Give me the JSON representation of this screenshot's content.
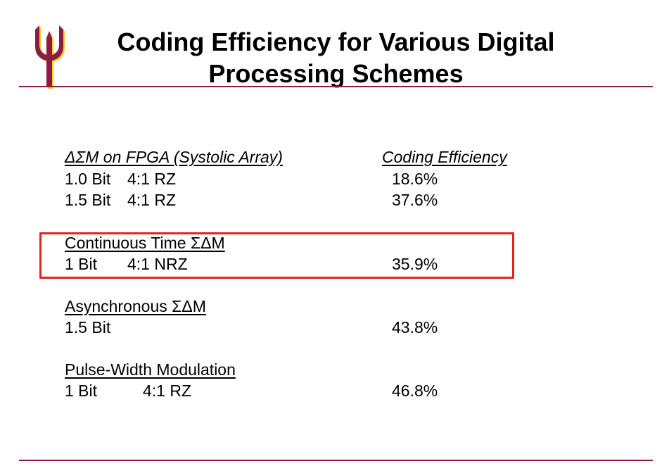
{
  "title": {
    "line1": "Coding Efficiency for Various Digital",
    "line2": "Processing Schemes"
  },
  "logo": {
    "icon": "pitchfork-logo-icon",
    "colors": {
      "maroon": "#8c1d40",
      "gold": "#ffc627"
    }
  },
  "sections": [
    {
      "header": "ΔΣM on FPGA (Systolic Array)",
      "column_header": "Coding Efficiency",
      "rows": [
        {
          "bits": "1.0 Bit",
          "scheme": "4:1 RZ",
          "efficiency": "18.6%"
        },
        {
          "bits": "1.5 Bit",
          "scheme": "4:1 RZ",
          "efficiency": "37.6%"
        }
      ]
    },
    {
      "header": "Continuous Time ΣΔM",
      "rows": [
        {
          "bits": "1 Bit",
          "scheme": "4:1 NRZ",
          "efficiency": "35.9%"
        }
      ]
    },
    {
      "header": "Asynchronous ΣΔM",
      "rows": [
        {
          "bits": "1.5 Bit",
          "scheme": "",
          "efficiency": "43.8%"
        }
      ]
    },
    {
      "header": "Pulse-Width Modulation",
      "rows": [
        {
          "bits": "1 Bit",
          "scheme": "4:1 RZ",
          "efficiency": "46.8%"
        }
      ]
    }
  ],
  "highlight_color": "#e32222",
  "rule_color": "#8c1d40"
}
